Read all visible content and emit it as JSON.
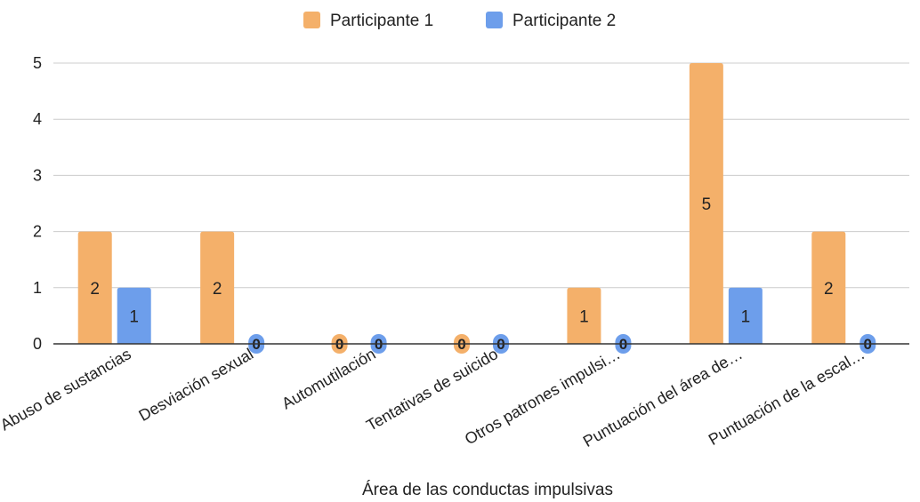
{
  "chart_data": {
    "type": "bar",
    "title": "",
    "xlabel": "Área de las conductas impulsivas",
    "ylabel": "",
    "ylim": [
      0,
      5
    ],
    "yticks": [
      0,
      1,
      2,
      3,
      4,
      5
    ],
    "grid": true,
    "legend_position": "top",
    "categories": [
      "Abuso de sustancias",
      "Desviación sexual",
      "Automutilación",
      "Tentativas de suicido",
      "Otros patrones impulsi…",
      "Puntuación del área de…",
      "Puntuación de la escal…"
    ],
    "series": [
      {
        "name": "Participante 1",
        "color": "#f4b06a",
        "values": [
          2,
          2,
          0,
          0,
          1,
          5,
          2
        ]
      },
      {
        "name": "Participante 2",
        "color": "#6d9eeb",
        "values": [
          1,
          0,
          0,
          0,
          0,
          1,
          0
        ]
      }
    ]
  }
}
